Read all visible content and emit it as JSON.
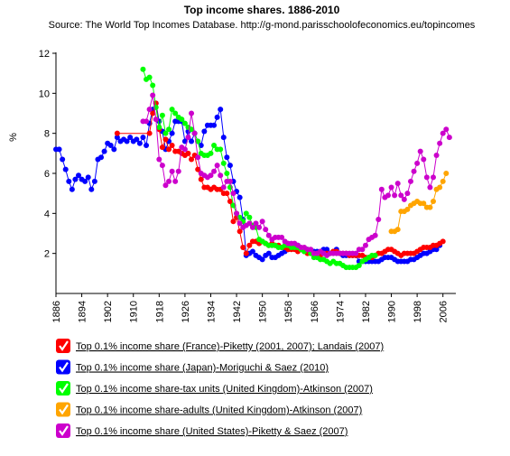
{
  "chart_data": {
    "type": "line",
    "title": "Top income shares. 1886-2010",
    "subtitle": "Source: The World Top Incomes Database. http://g-mond.parisschoolofeconomics.eu/topincomes",
    "y_label": "%",
    "xlim": [
      1886,
      2010
    ],
    "xticks": [
      1886,
      1894,
      1902,
      1910,
      1918,
      1926,
      1934,
      1942,
      1950,
      1958,
      1966,
      1974,
      1982,
      1990,
      1998,
      2006
    ],
    "ylim": [
      0,
      12
    ],
    "yticks": [
      2,
      4,
      6,
      8,
      10,
      12
    ],
    "series": [
      {
        "name": "Top 0.1% income share (Japan)-Moriguchi & Saez (2010)",
        "color": "#0000ff",
        "x": [
          1886,
          1887,
          1888,
          1889,
          1890,
          1891,
          1892,
          1893,
          1894,
          1895,
          1896,
          1897,
          1898,
          1899,
          1900,
          1901,
          1902,
          1903,
          1904,
          1905,
          1906,
          1907,
          1908,
          1909,
          1910,
          1911,
          1912,
          1913,
          1914,
          1915,
          1916,
          1917,
          1918,
          1919,
          1920,
          1921,
          1922,
          1923,
          1924,
          1925,
          1926,
          1927,
          1928,
          1929,
          1930,
          1931,
          1932,
          1933,
          1934,
          1935,
          1936,
          1937,
          1938,
          1939,
          1940,
          1941,
          1942,
          1943,
          1944,
          1945,
          1946,
          1947,
          1948,
          1949,
          1950,
          1951,
          1952,
          1953,
          1954,
          1955,
          1956,
          1957,
          1958,
          1959,
          1960,
          1961,
          1962,
          1963,
          1964,
          1965,
          1966,
          1967,
          1968,
          1969,
          1970,
          1971,
          1972,
          1973,
          1974,
          1975,
          1976,
          1977,
          1978,
          1979,
          1980,
          1981,
          1982,
          1983,
          1984,
          1985,
          1986,
          1987,
          1988,
          1989,
          1990,
          1991,
          1992,
          1993,
          1994,
          1995,
          1996,
          1997,
          1998,
          1999,
          2000,
          2001,
          2002,
          2003,
          2004,
          2005
        ],
        "values": [
          7.2,
          7.2,
          6.7,
          6.2,
          5.6,
          5.2,
          5.7,
          5.9,
          5.7,
          5.6,
          5.8,
          5.2,
          5.6,
          6.7,
          6.8,
          7.1,
          7.5,
          7.4,
          7.2,
          7.8,
          7.6,
          7.7,
          7.6,
          7.8,
          7.6,
          7.7,
          7.5,
          7.8,
          7.4,
          8.5,
          9.2,
          9.5,
          8.6,
          8.1,
          7.2,
          7.6,
          8.0,
          8.6,
          8.6,
          8.6,
          7.6,
          8.1,
          7.6,
          8.0,
          7.6,
          7.4,
          8.1,
          8.4,
          8.4,
          8.4,
          8.8,
          9.2,
          7.8,
          6.8,
          6.4,
          5.6,
          5.1,
          4.8,
          3.7,
          1.9,
          2.0,
          2.1,
          1.9,
          1.8,
          1.7,
          1.9,
          2.0,
          1.8,
          1.8,
          1.9,
          2.0,
          2.1,
          2.2,
          2.3,
          2.3,
          2.4,
          2.2,
          2.2,
          2.2,
          2.1,
          2.1,
          2.1,
          2.1,
          2.2,
          2.2,
          2.0,
          2.1,
          2.2,
          2.0,
          1.9,
          1.9,
          1.9,
          1.9,
          1.9,
          1.6,
          1.6,
          1.6,
          1.6,
          1.6,
          1.6,
          1.6,
          1.7,
          1.8,
          1.8,
          1.8,
          1.7,
          1.6,
          1.6,
          1.6,
          1.6,
          1.7,
          1.7,
          1.8,
          1.9,
          2.0,
          2.0,
          2.1,
          2.2,
          2.2,
          2.4
        ]
      },
      {
        "name": "Top 0.1% income share (France)-Piketty (2001, 2007); Landais (2007)",
        "color": "#ff0000",
        "x": [
          1905,
          1915,
          1916,
          1917,
          1918,
          1919,
          1920,
          1921,
          1922,
          1923,
          1924,
          1925,
          1926,
          1927,
          1928,
          1929,
          1930,
          1931,
          1932,
          1933,
          1934,
          1935,
          1936,
          1937,
          1938,
          1939,
          1940,
          1941,
          1942,
          1943,
          1944,
          1945,
          1946,
          1947,
          1948,
          1949,
          1950,
          1951,
          1952,
          1953,
          1954,
          1955,
          1956,
          1957,
          1958,
          1959,
          1960,
          1961,
          1962,
          1963,
          1964,
          1965,
          1966,
          1967,
          1968,
          1969,
          1970,
          1971,
          1972,
          1973,
          1974,
          1975,
          1976,
          1977,
          1978,
          1979,
          1980,
          1981,
          1982,
          1983,
          1984,
          1985,
          1986,
          1987,
          1988,
          1989,
          1990,
          1991,
          1992,
          1993,
          1994,
          1995,
          1996,
          1997,
          1998,
          1999,
          2000,
          2001,
          2002,
          2003,
          2004,
          2005,
          2006
        ],
        "values": [
          8.0,
          8.0,
          9.0,
          9.5,
          8.2,
          7.3,
          7.7,
          7.2,
          7.4,
          7.1,
          7.1,
          7.0,
          6.9,
          7.0,
          6.7,
          6.9,
          6.2,
          5.7,
          5.3,
          5.3,
          5.2,
          5.3,
          5.2,
          5.2,
          5.0,
          5.0,
          4.6,
          3.6,
          3.8,
          3.1,
          2.3,
          2.0,
          2.4,
          2.6,
          2.6,
          2.5,
          2.6,
          2.5,
          2.4,
          2.5,
          2.4,
          2.4,
          2.3,
          2.3,
          2.2,
          2.2,
          2.2,
          2.1,
          2.2,
          2.1,
          2.0,
          2.0,
          2.0,
          2.0,
          1.9,
          2.0,
          2.0,
          2.0,
          2.1,
          2.1,
          2.0,
          2.0,
          2.0,
          1.9,
          1.9,
          1.9,
          1.9,
          1.9,
          1.8,
          1.8,
          1.8,
          1.9,
          2.0,
          2.0,
          2.1,
          2.2,
          2.2,
          2.1,
          2.0,
          1.9,
          2.0,
          2.0,
          2.0,
          2.0,
          2.1,
          2.2,
          2.3,
          2.3,
          2.3,
          2.4,
          2.4,
          2.5,
          2.6
        ]
      },
      {
        "name": "Top 0.1% income share-tax units (United Kingdom)-Atkinson (2007)",
        "color": "#00ff00",
        "x": [
          1913,
          1914,
          1915,
          1916,
          1917,
          1918,
          1919,
          1920,
          1921,
          1922,
          1923,
          1924,
          1925,
          1926,
          1927,
          1928,
          1929,
          1930,
          1931,
          1932,
          1933,
          1934,
          1935,
          1936,
          1937,
          1938,
          1939,
          1940,
          1941,
          1942,
          1943,
          1944,
          1945,
          1946,
          1947,
          1948,
          1949,
          1950,
          1951,
          1952,
          1953,
          1954,
          1955,
          1956,
          1957,
          1958,
          1959,
          1960,
          1961,
          1962,
          1963,
          1964,
          1965,
          1966,
          1967,
          1968,
          1969,
          1970,
          1971,
          1972,
          1973,
          1974,
          1975,
          1976,
          1977,
          1978,
          1979,
          1980,
          1981,
          1982,
          1983,
          1984,
          1985
        ],
        "values": [
          11.2,
          10.7,
          10.8,
          10.4,
          9.3,
          8.3,
          8.9,
          8.0,
          8.2,
          9.2,
          9.0,
          8.8,
          8.7,
          8.5,
          8.3,
          8.2,
          8.0,
          7.6,
          7.0,
          6.9,
          6.9,
          7.0,
          7.4,
          7.2,
          7.2,
          6.5,
          6.0,
          5.3,
          4.4,
          4.0,
          3.8,
          3.6,
          4.0,
          3.8,
          3.4,
          3.3,
          2.7,
          2.6,
          2.5,
          2.4,
          2.4,
          2.4,
          2.3,
          2.3,
          2.4,
          2.4,
          2.3,
          2.3,
          2.3,
          2.2,
          2.1,
          2.2,
          2.0,
          1.8,
          1.8,
          1.7,
          1.7,
          1.6,
          1.5,
          1.6,
          1.5,
          1.5,
          1.4,
          1.3,
          1.3,
          1.3,
          1.3,
          1.4,
          1.6,
          1.7,
          1.8,
          1.9,
          1.9
        ]
      },
      {
        "name": "Top 0.1% income share-adults (United Kingdom)-Atkinson (2007)",
        "color": "#ffa500",
        "x": [
          1990,
          1991,
          1992,
          1993,
          1994,
          1995,
          1996,
          1997,
          1998,
          1999,
          2000,
          2001,
          2002,
          2003,
          2004,
          2005,
          2006,
          2007
        ],
        "values": [
          3.1,
          3.1,
          3.2,
          4.1,
          4.1,
          4.2,
          4.4,
          4.5,
          4.6,
          4.5,
          4.5,
          4.3,
          4.3,
          4.6,
          5.2,
          5.3,
          5.6,
          6.0
        ]
      },
      {
        "name": "Top 0.1% income share (United States)-Piketty & Saez (2007)",
        "color": "#cc00cc",
        "x": [
          1913,
          1914,
          1915,
          1916,
          1917,
          1918,
          1919,
          1920,
          1921,
          1922,
          1923,
          1924,
          1925,
          1926,
          1927,
          1928,
          1929,
          1930,
          1931,
          1932,
          1933,
          1934,
          1935,
          1936,
          1937,
          1938,
          1939,
          1940,
          1941,
          1942,
          1943,
          1944,
          1945,
          1946,
          1947,
          1948,
          1949,
          1950,
          1951,
          1952,
          1953,
          1954,
          1955,
          1956,
          1957,
          1958,
          1959,
          1960,
          1961,
          1962,
          1963,
          1964,
          1965,
          1966,
          1967,
          1968,
          1969,
          1970,
          1971,
          1972,
          1973,
          1974,
          1975,
          1976,
          1977,
          1978,
          1979,
          1980,
          1981,
          1982,
          1983,
          1984,
          1985,
          1986,
          1987,
          1988,
          1989,
          1990,
          1991,
          1992,
          1993,
          1994,
          1995,
          1996,
          1997,
          1998,
          1999,
          2000,
          2001,
          2002,
          2003,
          2004,
          2005,
          2006,
          2007,
          2008
        ],
        "values": [
          8.6,
          8.6,
          9.2,
          9.9,
          8.7,
          6.7,
          6.4,
          5.4,
          5.6,
          6.1,
          5.6,
          6.1,
          7.3,
          7.2,
          7.8,
          9.0,
          8.0,
          6.8,
          6.0,
          5.9,
          5.8,
          5.9,
          6.1,
          6.4,
          5.9,
          5.3,
          5.6,
          5.6,
          5.0,
          4.0,
          3.5,
          3.3,
          3.4,
          3.5,
          3.3,
          3.5,
          3.3,
          3.6,
          3.2,
          2.9,
          2.7,
          2.8,
          2.8,
          2.8,
          2.6,
          2.5,
          2.5,
          2.5,
          2.4,
          2.3,
          2.3,
          2.2,
          2.2,
          2.0,
          2.0,
          2.1,
          2.0,
          1.9,
          2.0,
          2.0,
          2.0,
          2.0,
          2.0,
          2.0,
          2.0,
          2.0,
          2.0,
          2.2,
          2.2,
          2.4,
          2.7,
          2.8,
          2.9,
          3.7,
          5.2,
          4.8,
          4.9,
          5.3,
          4.9,
          5.5,
          4.9,
          4.7,
          5.0,
          5.6,
          6.1,
          6.5,
          7.1,
          6.7,
          5.8,
          5.3,
          5.8,
          6.9,
          7.5,
          8.0,
          8.2,
          7.8
        ]
      }
    ],
    "legend_order": [
      1,
      0,
      2,
      3,
      4
    ]
  }
}
